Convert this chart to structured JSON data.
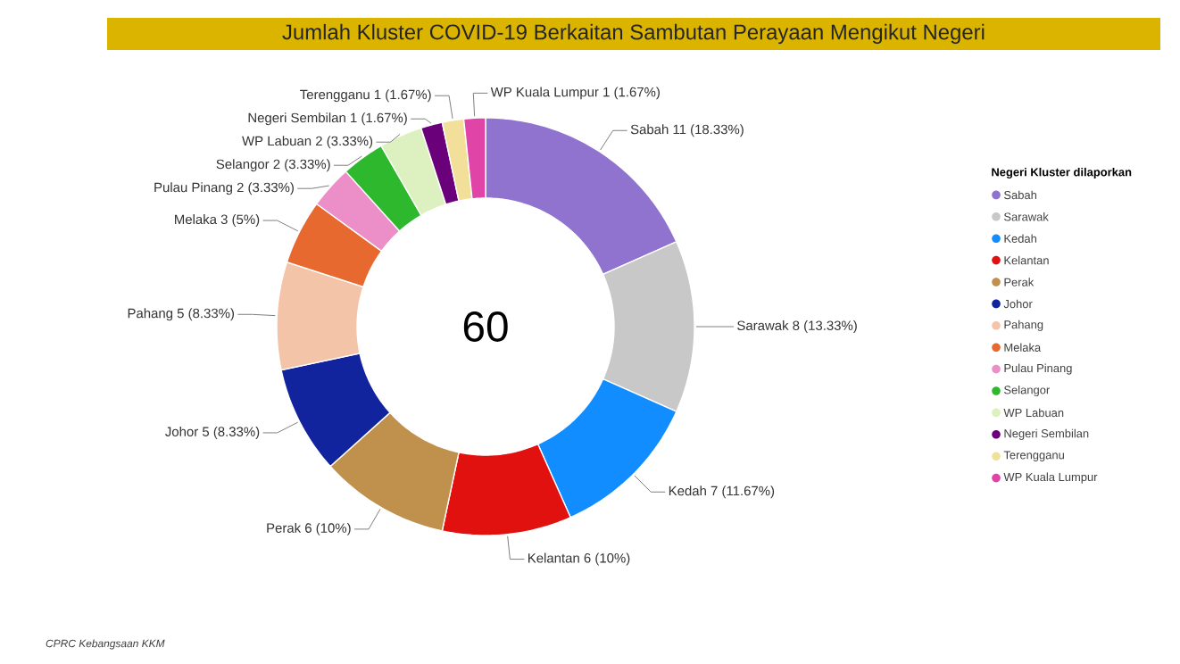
{
  "chart_data": {
    "type": "donut",
    "title": "Jumlah Kluster COVID-19 Berkaitan Sambutan Perayaan Mengikut Negeri",
    "categories": [
      "Sabah",
      "Sarawak",
      "Kedah",
      "Kelantan",
      "Perak",
      "Johor",
      "Pahang",
      "Melaka",
      "Pulau Pinang",
      "Selangor",
      "WP Labuan",
      "Negeri Sembilan",
      "Terengganu",
      "WP Kuala Lumpur"
    ],
    "values": [
      11,
      8,
      7,
      6,
      6,
      5,
      5,
      3,
      2,
      2,
      2,
      1,
      1,
      1
    ],
    "colors": [
      "#8f73cf",
      "#c8c8c8",
      "#118dff",
      "#e0110f",
      "#c0904d",
      "#12239e",
      "#f4c4a8",
      "#e8692f",
      "#ec8fc8",
      "#2eb82e",
      "#ddf0c0",
      "#6b007b",
      "#f2e09a",
      "#e044a7"
    ],
    "value_labels": [
      "Sabah 11 (18.33%)",
      "Sarawak 8 (13.33%)",
      "Kedah 7 (11.67%)",
      "Kelantan 6 (10%)",
      "Perak 6 (10%)",
      "Johor 5 (8.33%)",
      "Pahang 5 (8.33%)",
      "Melaka 3 (5%)",
      "Pulau Pinang 2 (3.33%)",
      "Selangor 2 (3.33%)",
      "WP Labuan 2 (3.33%)",
      "Negeri Sembilan 1 (1.67%)",
      "Terengganu 1 (1.67%)",
      "WP Kuala Lumpur 1 (1.67%)"
    ],
    "legend": "right",
    "legend_title": "Negeri Kluster dilaporkan",
    "annotations": [
      "60",
      "CPRC Kebangsaan KKM"
    ]
  }
}
